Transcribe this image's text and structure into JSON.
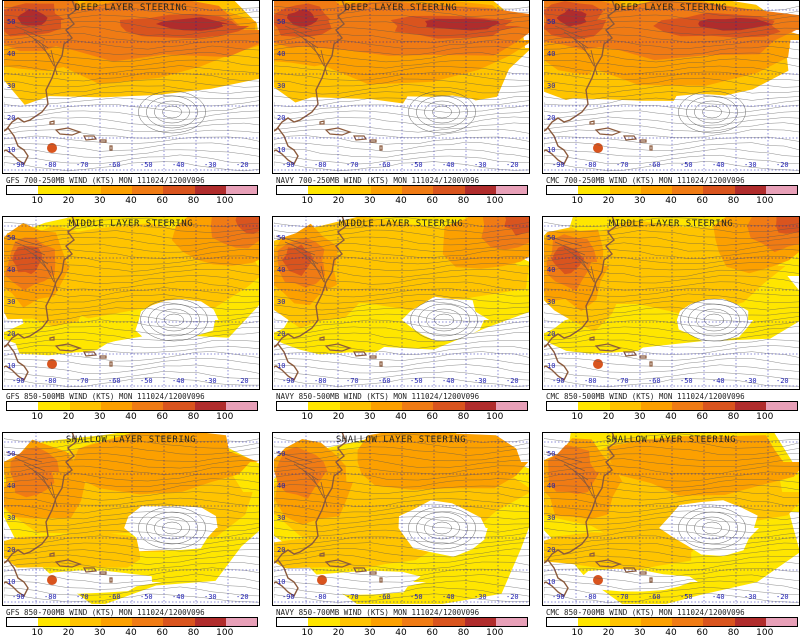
{
  "colors": {
    "c10": "#ffffff",
    "c20": "#ffe600",
    "c30": "#ffc400",
    "c40": "#fca000",
    "c60": "#f07b14",
    "c80": "#d9541e",
    "c100": "#b02c2c",
    "c110": "#e8a0b8",
    "land": "#8b5a3c",
    "grid": "#1a1ab0"
  },
  "legend": {
    "ticks": [
      "10",
      "20",
      "30",
      "40",
      "60",
      "80",
      "100"
    ]
  },
  "lon_labels": [
    "-90",
    "-80",
    "-70",
    "-60",
    "-50",
    "-40",
    "-30",
    "-20"
  ],
  "lat_labels": [
    "10",
    "20",
    "30",
    "40",
    "50"
  ],
  "panels": [
    {
      "title": "DEEP LAYER STEERING",
      "caption": "GFS 700-250MB WIND (KTS) MON 111024/1200V096",
      "model": "gfs",
      "layer": "deep"
    },
    {
      "title": "DEEP LAYER STEERING",
      "caption": "NAVY 700-250MB WIND (KTS) MON 111024/1200V096",
      "model": "navy",
      "layer": "deep"
    },
    {
      "title": "DEEP LAYER STEERING",
      "caption": "CMC 700-250MB WIND (KTS) MON 111024/1200V096",
      "model": "cmc",
      "layer": "deep"
    },
    {
      "title": "MIDDLE LAYER STEERING",
      "caption": "GFS 850-500MB WIND (KTS) MON 111024/1200V096",
      "model": "gfs",
      "layer": "middle"
    },
    {
      "title": "MIDDLE LAYER STEERING",
      "caption": "NAVY 850-500MB WIND (KTS) MON 111024/1200V096",
      "model": "navy",
      "layer": "middle"
    },
    {
      "title": "MIDDLE LAYER STEERING",
      "caption": "CMC 850-500MB WIND (KTS) MON 111024/1200V096",
      "model": "cmc",
      "layer": "middle"
    },
    {
      "title": "SHALLOW LAYER STEERING",
      "caption": "GFS 850-700MB WIND (KTS) MON 111024/1200V096",
      "model": "gfs",
      "layer": "shallow"
    },
    {
      "title": "SHALLOW LAYER STEERING",
      "caption": "NAVY 850-700MB WIND (KTS) MON 111024/1200V096",
      "model": "navy",
      "layer": "shallow"
    },
    {
      "title": "SHALLOW LAYER STEERING",
      "caption": "CMC 850-700MB WIND (KTS) MON 111024/1200V096",
      "model": "cmc",
      "layer": "shallow"
    }
  ]
}
